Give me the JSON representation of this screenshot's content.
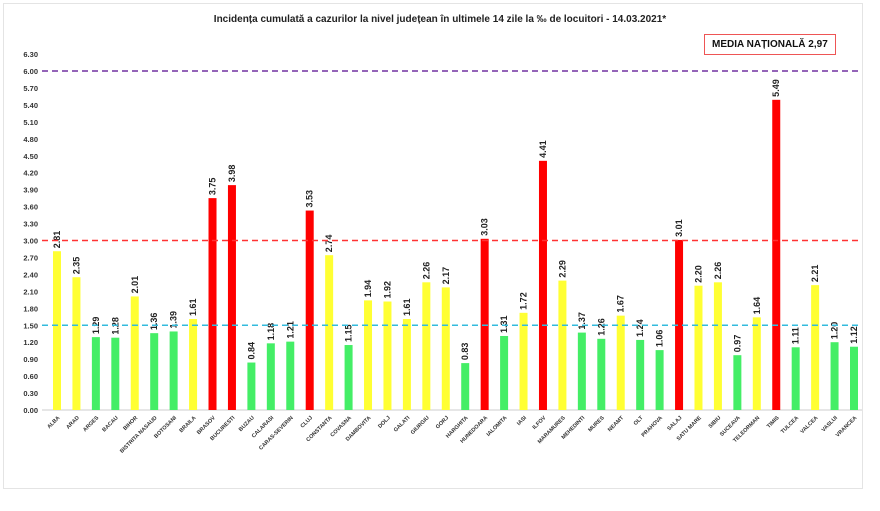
{
  "chart_data": {
    "type": "bar",
    "title": "Incidența cumulată a cazurilor la nivel județean în ultimele 14 zile la ‰ de locuitori - 14.03.2021*",
    "annotation": "MEDIA NAȚIONALĂ  2,97",
    "ylim": [
      0,
      6.3
    ],
    "yticks": [
      "0.00",
      "0.30",
      "0.60",
      "0.90",
      "1.20",
      "1.50",
      "1.80",
      "2.10",
      "2.40",
      "2.70",
      "3.00",
      "3.30",
      "3.60",
      "3.90",
      "4.20",
      "4.50",
      "4.80",
      "5.10",
      "5.40",
      "5.70",
      "6.00",
      "6.30"
    ],
    "categories": [
      "ALBA",
      "ARAD",
      "ARGES",
      "BACAU",
      "BIHOR",
      "BISTRITA NASAUD",
      "BOTOSANI",
      "BRAILA",
      "BRASOV",
      "BUCURESTI",
      "BUZAU",
      "CALARASI",
      "CARAS-SEVERIN",
      "CLUJ",
      "CONSTANTA",
      "COVASNA",
      "DAMBOVITA",
      "DOLJ",
      "GALATI",
      "GIURGIU",
      "GORJ",
      "HARGHITA",
      "HUNEDOARA",
      "IALOMITA",
      "IASI",
      "ILFOV",
      "MARAMURES",
      "MEHEDINTI",
      "MURES",
      "NEAMT",
      "OLT",
      "PRAHOVA",
      "SALAJ",
      "SATU MARE",
      "SIBIU",
      "SUCEAVA",
      "TELEORMAN",
      "TIMIS",
      "TULCEA",
      "VALCEA",
      "VASLUI",
      "VRANCEA"
    ],
    "values": [
      2.81,
      2.35,
      1.29,
      1.28,
      2.01,
      1.36,
      1.39,
      1.61,
      3.75,
      3.98,
      0.84,
      1.18,
      1.21,
      3.53,
      2.74,
      1.15,
      1.94,
      1.92,
      1.61,
      2.26,
      2.17,
      0.83,
      3.03,
      1.31,
      1.72,
      4.41,
      2.29,
      1.37,
      1.26,
      1.67,
      1.24,
      1.06,
      3.01,
      2.2,
      2.26,
      0.97,
      1.64,
      5.49,
      1.11,
      2.21,
      1.2,
      1.12
    ],
    "reference_lines": [
      {
        "value": 6.0,
        "color": "#7030a0"
      },
      {
        "value": 3.0,
        "color": "#ff3333"
      },
      {
        "value": 1.5,
        "color": "#33bbdd"
      }
    ],
    "colors": {
      "low": "#44ee66",
      "mid": "#ffff33",
      "high": "#ff0000"
    }
  }
}
